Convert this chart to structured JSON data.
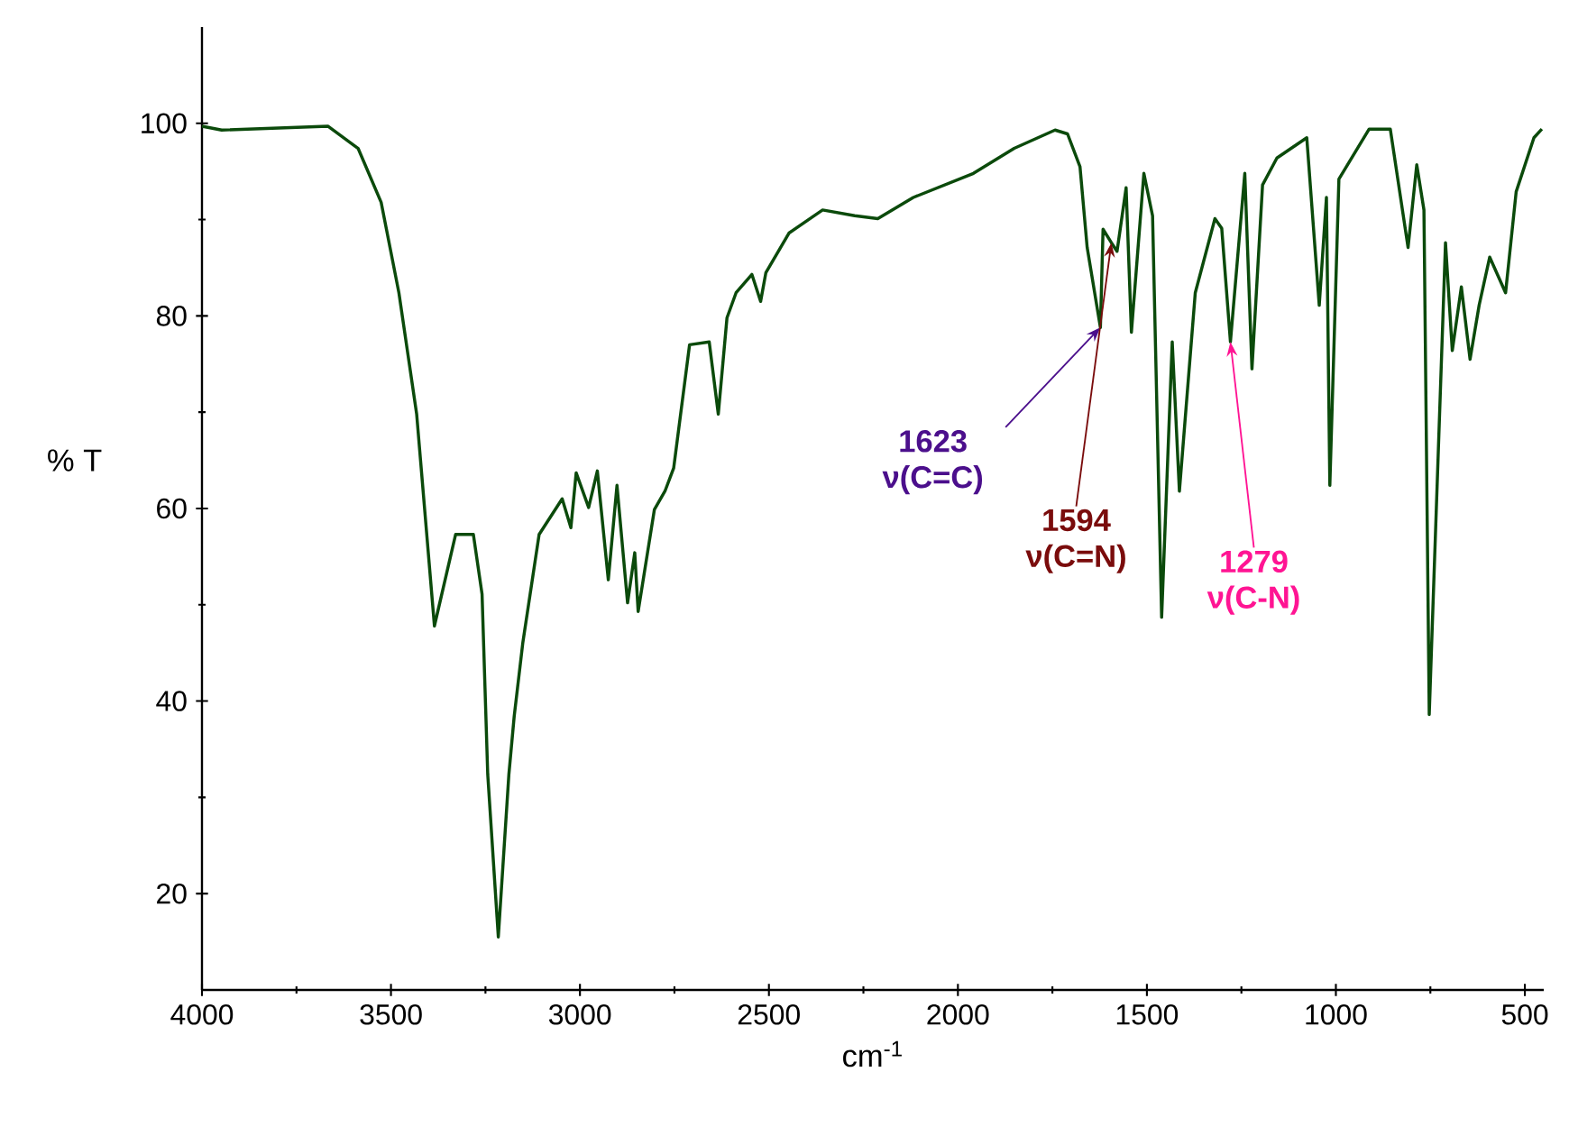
{
  "chart_data": {
    "type": "line",
    "xlabel": "cm$^{-1}$",
    "ylabel": "% T",
    "xlim": [
      4000,
      450
    ],
    "ylim": [
      10,
      110
    ],
    "xticks": [
      4000,
      3500,
      3000,
      2500,
      2000,
      1500,
      1000,
      500
    ],
    "yticks": [
      20,
      40,
      60,
      80,
      100
    ],
    "grid": false,
    "marker": "none",
    "line_style": "solid",
    "series": [
      {
        "color": "#0b4a0b",
        "x": [
          4000,
          3948,
          3667,
          3587,
          3526,
          3479,
          3432,
          3385,
          3329,
          3282,
          3259,
          3244,
          3216,
          3188,
          3174,
          3151,
          3108,
          3047,
          3024,
          3010,
          2977,
          2954,
          2925,
          2902,
          2874,
          2855,
          2846,
          2803,
          2775,
          2752,
          2710,
          2658,
          2634,
          2611,
          2587,
          2545,
          2522,
          2508,
          2447,
          2358,
          2273,
          2212,
          2118,
          1959,
          1851,
          1743,
          1710,
          1677,
          1658,
          1623,
          1616,
          1594,
          1579,
          1555,
          1541,
          1508,
          1485,
          1461,
          1433,
          1414,
          1372,
          1320,
          1302,
          1279,
          1241,
          1222,
          1194,
          1156,
          1077,
          1044,
          1025,
          1016,
          992,
          912,
          856,
          809,
          786,
          767,
          753,
          710,
          692,
          668,
          645,
          621,
          593,
          551,
          523,
          476,
          455
        ],
        "values": [
          99.7,
          99.3,
          99.7,
          97.4,
          91.8,
          82.4,
          69.8,
          47.8,
          57.3,
          57.3,
          51.1,
          32.4,
          15.5,
          32.4,
          38.4,
          46.1,
          57.3,
          61.0,
          58.0,
          63.7,
          60.1,
          63.9,
          52.6,
          62.4,
          50.2,
          55.4,
          49.3,
          59.9,
          61.8,
          64.2,
          77.0,
          77.3,
          69.8,
          79.8,
          82.4,
          84.3,
          81.5,
          84.5,
          88.6,
          91.0,
          90.4,
          90.1,
          92.3,
          94.8,
          97.4,
          99.3,
          98.9,
          95.5,
          87.1,
          78.8,
          89.0,
          87.6,
          86.7,
          93.3,
          78.3,
          94.8,
          90.4,
          48.7,
          77.3,
          61.8,
          82.4,
          90.1,
          89.1,
          77.3,
          94.8,
          74.5,
          93.6,
          96.4,
          98.5,
          81.1,
          92.3,
          62.4,
          94.2,
          99.4,
          99.4,
          87.1,
          95.7,
          91.0,
          38.6,
          87.6,
          76.4,
          83.0,
          75.5,
          81.1,
          86.1,
          82.4,
          92.9,
          98.5,
          99.4
        ]
      }
    ],
    "annotations": [
      {
        "text": "1623 ν(C=C)",
        "x": 1623,
        "y": 78.8
      },
      {
        "text": "1594 ν(C=N)",
        "x": 1594,
        "y": 87.6
      },
      {
        "text": "1279 ν(C-N)",
        "x": 1279,
        "y": 77.3
      }
    ]
  }
}
